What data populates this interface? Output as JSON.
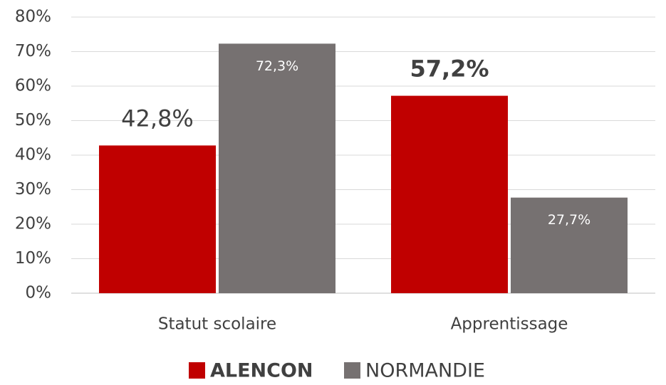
{
  "chart_data": {
    "type": "bar",
    "categories": [
      "Statut scolaire",
      "Apprentissage"
    ],
    "series": [
      {
        "name": "ALENCON",
        "color": "#c00000",
        "values": [
          42.8,
          57.2
        ],
        "value_labels": [
          "42,8%",
          "57,2%"
        ]
      },
      {
        "name": "NORMANDIE",
        "color": "#767171",
        "values": [
          72.3,
          27.7
        ],
        "value_labels": [
          "72,3%",
          "27,7%"
        ]
      }
    ],
    "ylim": [
      0,
      80
    ],
    "yticks": [
      {
        "value": 0,
        "label": "0%"
      },
      {
        "value": 10,
        "label": "10%"
      },
      {
        "value": 20,
        "label": "20%"
      },
      {
        "value": 30,
        "label": "30%"
      },
      {
        "value": 40,
        "label": "40%"
      },
      {
        "value": 50,
        "label": "50%"
      },
      {
        "value": 60,
        "label": "60%"
      },
      {
        "value": 70,
        "label": "70%"
      },
      {
        "value": 80,
        "label": "80%"
      }
    ],
    "grid": true,
    "legend": "bottom"
  }
}
